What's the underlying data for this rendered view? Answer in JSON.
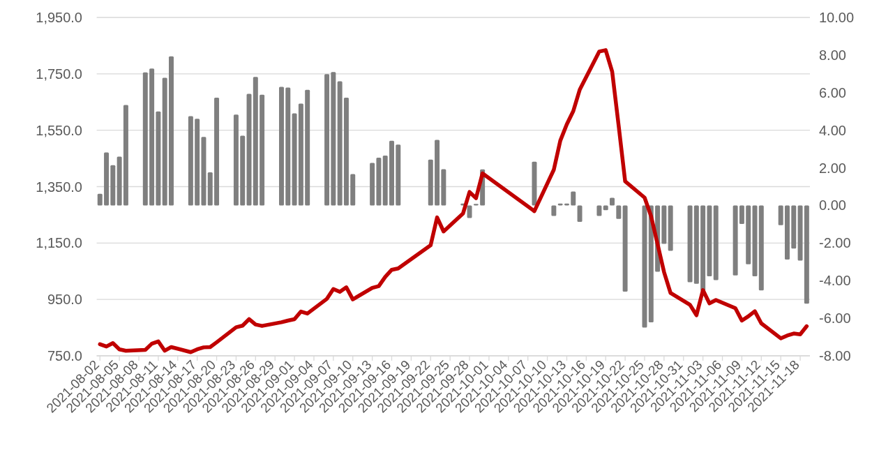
{
  "chart_data": {
    "type": "bar",
    "x": [
      "2021-08-02",
      "2021-08-03",
      "2021-08-04",
      "2021-08-05",
      "2021-08-06",
      "2021-08-09",
      "2021-08-10",
      "2021-08-11",
      "2021-08-12",
      "2021-08-13",
      "2021-08-16",
      "2021-08-17",
      "2021-08-18",
      "2021-08-19",
      "2021-08-20",
      "2021-08-23",
      "2021-08-24",
      "2021-08-25",
      "2021-08-26",
      "2021-08-27",
      "2021-08-30",
      "2021-08-31",
      "2021-09-01",
      "2021-09-02",
      "2021-09-03",
      "2021-09-06",
      "2021-09-07",
      "2021-09-08",
      "2021-09-09",
      "2021-09-10",
      "2021-09-13",
      "2021-09-14",
      "2021-09-15",
      "2021-09-16",
      "2021-09-17",
      "2021-09-22",
      "2021-09-23",
      "2021-09-24",
      "2021-09-27",
      "2021-09-28",
      "2021-09-29",
      "2021-09-30",
      "2021-10-08",
      "2021-10-11",
      "2021-10-12",
      "2021-10-13",
      "2021-10-14",
      "2021-10-15",
      "2021-10-18",
      "2021-10-19",
      "2021-10-20",
      "2021-10-21",
      "2021-10-22",
      "2021-10-25",
      "2021-10-26",
      "2021-10-27",
      "2021-10-28",
      "2021-10-29",
      "2021-11-01",
      "2021-11-02",
      "2021-11-03",
      "2021-11-04",
      "2021-11-05",
      "2021-11-08",
      "2021-11-09",
      "2021-11-10",
      "2021-11-11",
      "2021-11-12",
      "2021-11-15",
      "2021-11-16",
      "2021-11-17",
      "2021-11-18",
      "2021-11-19"
    ],
    "series": [
      {
        "axis": "y2",
        "color": "#7f7f7f",
        "values": [
          0.62,
          2.82,
          2.14,
          2.6,
          5.34,
          7.08,
          7.28,
          5.0,
          6.79,
          7.93,
          4.75,
          4.61,
          3.64,
          1.76,
          5.73,
          4.83,
          3.71,
          5.94,
          6.84,
          5.89,
          6.31,
          6.27,
          4.9,
          5.42,
          6.15,
          6.98,
          7.1,
          6.6,
          5.73,
          1.67,
          2.26,
          2.54,
          2.65,
          3.44,
          3.24,
          2.44,
          3.49,
          1.93,
          0.1,
          -0.67,
          0.08,
          1.92,
          2.33,
          -0.56,
          0.1,
          0.1,
          0.74,
          -0.87,
          -0.56,
          -0.25,
          0.41,
          -0.72,
          -4.59,
          -6.5,
          -6.22,
          -3.53,
          -2.04,
          -2.41,
          -4.08,
          -4.17,
          -4.55,
          -3.77,
          -3.97,
          -3.72,
          -0.99,
          -3.13,
          -3.77,
          -4.52,
          -1.05,
          -2.88,
          -2.29,
          -2.93,
          -5.23
        ]
      },
      {
        "type": "line",
        "color": "#c00000",
        "values": [
          791,
          783,
          795,
          773,
          768,
          771,
          793,
          801,
          768,
          781,
          763,
          773,
          780,
          781,
          798,
          851,
          857,
          880,
          861,
          856,
          869,
          875,
          880,
          907,
          900,
          952,
          987,
          977,
          993,
          950,
          991,
          997,
          1030,
          1055,
          1060,
          1142,
          1241,
          1191,
          1255,
          1331,
          1309,
          1397,
          1263,
          1410,
          1513,
          1571,
          1618,
          1694,
          1829,
          1834,
          1758,
          1566,
          1369,
          1311,
          1245,
          1146,
          1047,
          973,
          931,
          894,
          983,
          936,
          948,
          919,
          875,
          890,
          908,
          865,
          812,
          822,
          829,
          826,
          855
        ]
      }
    ],
    "xlim": [
      "2021-08-02",
      "2021-11-19"
    ],
    "xticks": [
      "2021-08-02",
      "2021-08-05",
      "2021-08-08",
      "2021-08-11",
      "2021-08-14",
      "2021-08-17",
      "2021-08-20",
      "2021-08-23",
      "2021-08-26",
      "2021-08-29",
      "2021-09-01",
      "2021-09-04",
      "2021-09-07",
      "2021-09-10",
      "2021-09-13",
      "2021-09-16",
      "2021-09-19",
      "2021-09-22",
      "2021-09-25",
      "2021-09-28",
      "2021-10-01",
      "2021-10-04",
      "2021-10-07",
      "2021-10-10",
      "2021-10-13",
      "2021-10-16",
      "2021-10-19",
      "2021-10-22",
      "2021-10-25",
      "2021-10-28",
      "2021-10-31",
      "2021-11-03",
      "2021-11-06",
      "2021-11-09",
      "2021-11-12",
      "2021-11-15",
      "2021-11-18"
    ],
    "ylim": [
      750,
      1950
    ],
    "yticks": [
      {
        "value": 750,
        "label": "750.0"
      },
      {
        "value": 950,
        "label": "950.0"
      },
      {
        "value": 1150,
        "label": "1,150.0"
      },
      {
        "value": 1350,
        "label": "1,350.0"
      },
      {
        "value": 1550,
        "label": "1,550.0"
      },
      {
        "value": 1750,
        "label": "1,750.0"
      },
      {
        "value": 1950,
        "label": "1,950.0"
      }
    ],
    "y2lim": [
      -8,
      10
    ],
    "y2ticks": [
      {
        "value": -8,
        "label": "-8.00"
      },
      {
        "value": -6,
        "label": "-6.00"
      },
      {
        "value": -4,
        "label": "-4.00"
      },
      {
        "value": -2,
        "label": "-2.00"
      },
      {
        "value": 0,
        "label": "0.00"
      },
      {
        "value": 2,
        "label": "2.00"
      },
      {
        "value": 4,
        "label": "4.00"
      },
      {
        "value": 6,
        "label": "6.00"
      },
      {
        "value": 8,
        "label": "8.00"
      },
      {
        "value": 10,
        "label": "10.00"
      }
    ],
    "grid": "y"
  }
}
